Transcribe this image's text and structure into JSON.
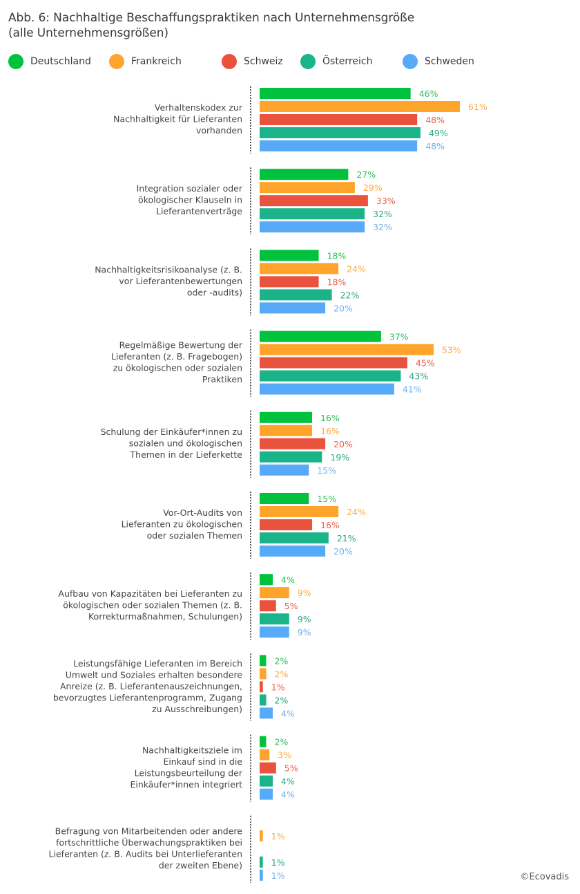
{
  "chart_data": {
    "type": "bar",
    "orientation": "horizontal",
    "title": "Abb. 6: Nachhaltige Beschaffungspraktiken nach Unternehmensgröße",
    "subtitle": "(alle Unternehmensgrößen)",
    "xlabel": "",
    "ylabel": "",
    "unit": "%",
    "xlim": [
      0,
      61
    ],
    "grid": false,
    "legend_position": "top-left",
    "categories": [
      [
        "Verhaltenskodex zur",
        "Nachhaltigkeit für Lieferanten",
        "vorhanden"
      ],
      [
        "Integration sozialer oder",
        "ökologischer Klauseln in",
        "Lieferantenverträge"
      ],
      [
        "Nachhaltigkeitsrisikoanalyse (z. B.",
        "vor Lieferantenbewertungen",
        "oder -audits)"
      ],
      [
        "Regelmäßige Bewertung der",
        "Lieferanten (z. B. Fragebogen)",
        "zu ökologischen oder sozialen",
        "Praktiken"
      ],
      [
        "Schulung der Einkäufer*innen zu",
        "sozialen und ökologischen",
        "Themen in der Lieferkette"
      ],
      [
        "Vor-Ort-Audits von",
        "Lieferanten zu ökologischen",
        "oder sozialen Themen"
      ],
      [
        "Aufbau von Kapazitäten bei Lieferanten zu",
        "ökologischen oder sozialen Themen (z. B.",
        "Korrekturmaßnahmen, Schulungen)"
      ],
      [
        "Leistungsfähige Lieferanten im Bereich",
        "Umwelt und Soziales erhalten besondere",
        "Anreize (z. B. Lieferantenauszeichnungen,",
        "bevorzugtes Lieferantenprogramm, Zugang",
        "zu Ausschreibungen)"
      ],
      [
        "Nachhaltigkeitsziele im",
        "Einkauf sind in die",
        "Leistungsbeurteilung der",
        "Einkäufer*innen integriert"
      ],
      [
        "Befragung von Mitarbeitenden oder andere",
        "fortschrittliche Überwachungspraktiken bei",
        "Lieferanten (z. B. Audits bei Unterlieferanten",
        "der zweiten Ebene)"
      ]
    ],
    "series": [
      {
        "name": "Deutschland",
        "color": "#00c23c",
        "label_color": "#2fbf5a",
        "values": [
          46,
          27,
          18,
          37,
          16,
          15,
          4,
          2,
          2,
          null
        ]
      },
      {
        "name": "Frankreich",
        "color": "#ffa42b",
        "label_color": "#f9ad47",
        "values": [
          61,
          29,
          24,
          53,
          16,
          24,
          9,
          2,
          3,
          1
        ]
      },
      {
        "name": "Schweiz",
        "color": "#e9533d",
        "label_color": "#e8604d",
        "values": [
          48,
          33,
          18,
          45,
          20,
          16,
          5,
          1,
          5,
          null
        ]
      },
      {
        "name": "Österreich",
        "color": "#1bb38a",
        "label_color": "#2aa883",
        "values": [
          49,
          32,
          22,
          43,
          19,
          21,
          9,
          2,
          4,
          1
        ]
      },
      {
        "name": "Schweden",
        "color": "#56aaf7",
        "label_color": "#6fb2ee",
        "values": [
          48,
          32,
          20,
          41,
          15,
          20,
          9,
          4,
          4,
          1
        ]
      }
    ]
  },
  "credit": "©Ecovadis"
}
